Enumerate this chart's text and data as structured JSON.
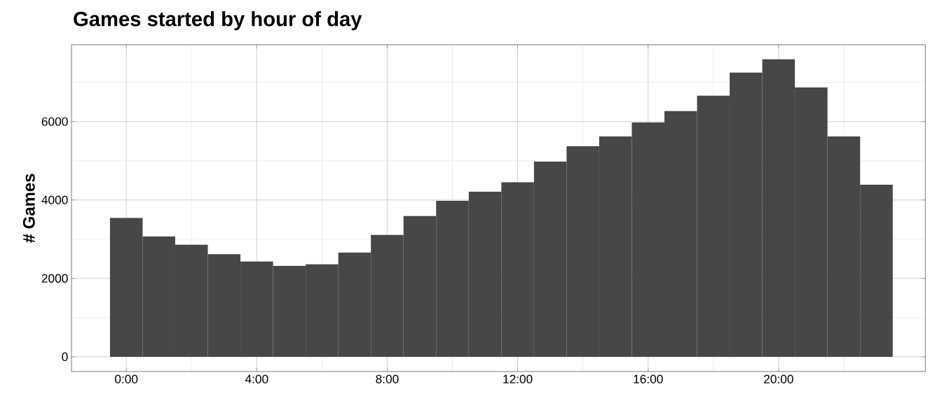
{
  "chart_data": {
    "type": "histogram",
    "title": "Games started by hour of day",
    "ylabel": "# Games",
    "color": "#474747",
    "bins": [
      -0.5,
      0.5,
      1.5,
      2.5,
      3.5,
      4.5,
      5.5,
      6.5,
      7.5,
      8.5,
      9.5,
      10.5,
      11.5,
      12.5,
      13.5,
      14.5,
      15.5,
      16.5,
      17.5,
      18.5,
      19.5,
      20.5,
      21.5,
      22.5,
      23.5
    ],
    "values": [
      3540,
      3070,
      2860,
      2620,
      2430,
      2320,
      2360,
      2660,
      3110,
      3590,
      3980,
      4210,
      4450,
      4980,
      5370,
      5620,
      5980,
      6270,
      6660,
      7250,
      7590,
      6870,
      5620,
      4390
    ],
    "xlim": [
      -1.68,
      24.5
    ],
    "ylim": [
      -375,
      7960
    ],
    "xticks": [
      {
        "value": 0,
        "label": "0:00"
      },
      {
        "value": 4,
        "label": "4:00"
      },
      {
        "value": 8,
        "label": "8:00"
      },
      {
        "value": 12,
        "label": "12:00"
      },
      {
        "value": 16,
        "label": "16:00"
      },
      {
        "value": 20,
        "label": "20:00"
      }
    ],
    "yticks": [
      0,
      2000,
      4000,
      6000
    ],
    "grid": true
  }
}
